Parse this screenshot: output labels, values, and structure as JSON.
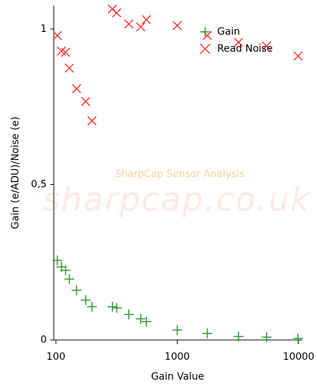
{
  "chart_data": {
    "type": "scatter",
    "y_label": "Gain (e/ADU)/Noise (e)",
    "x_label": "Gain Value",
    "annotations": [
      "SharpCap Sensor Analysis",
      "sharpcap.co.uk"
    ],
    "x": [
      102.7,
      111,
      120,
      129,
      148,
      176,
      198,
      292,
      317,
      399,
      500,
      557,
      1000,
      1770,
      3200,
      5450,
      9900
    ],
    "series": [
      {
        "name": "Gain",
        "color": "#2e9b2e",
        "marker": "plus",
        "values": [
          0.256,
          0.235,
          0.224,
          0.196,
          0.16,
          0.128,
          0.107,
          0.107,
          0.103,
          0.082,
          0.068,
          0.059,
          0.032,
          0.021,
          0.011,
          0.009,
          0.005
        ]
      },
      {
        "name": "Read Noise",
        "color": "#ff3333",
        "marker": "cross",
        "values": [
          0.979,
          0.929,
          0.925,
          0.874,
          0.808,
          0.767,
          0.705,
          1.064,
          1.052,
          1.016,
          1.007,
          1.03,
          1.011,
          0.979,
          0.957,
          0.945,
          0.913
        ]
      }
    ],
    "xscale": "log",
    "xlim": [
      96,
      10700
    ],
    "xticks": [
      100,
      1000,
      10000
    ],
    "ylim": [
      0,
      1.075
    ],
    "yticks": [
      0,
      {
        "value": 0.5,
        "label": "0,5"
      },
      1
    ],
    "legend": "upper right"
  }
}
